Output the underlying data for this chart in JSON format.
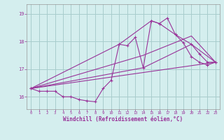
{
  "xlabel": "Windchill (Refroidissement éolien,°C)",
  "background_color": "#d4eeee",
  "grid_color": "#a8cccc",
  "line_color": "#993399",
  "x_ticks": [
    0,
    1,
    2,
    3,
    4,
    5,
    6,
    7,
    8,
    9,
    10,
    11,
    12,
    13,
    14,
    15,
    16,
    17,
    18,
    19,
    20,
    21,
    22,
    23
  ],
  "y_ticks": [
    16,
    17,
    18,
    19
  ],
  "ylim": [
    15.55,
    19.35
  ],
  "xlim": [
    -0.5,
    23.5
  ],
  "line1_x": [
    0,
    1,
    2,
    3,
    4,
    5,
    6,
    7,
    8,
    9,
    10,
    11,
    12,
    13,
    14,
    15,
    16,
    17,
    18,
    19,
    20,
    21,
    22,
    23
  ],
  "line1_y": [
    16.3,
    16.2,
    16.2,
    16.2,
    16.0,
    16.0,
    15.9,
    15.85,
    15.82,
    16.3,
    16.6,
    17.9,
    17.85,
    18.15,
    17.05,
    18.75,
    18.65,
    18.85,
    18.25,
    17.95,
    17.45,
    17.25,
    17.15,
    17.25
  ],
  "line2_x": [
    0,
    23
  ],
  "line2_y": [
    16.3,
    17.25
  ],
  "line3_x": [
    0,
    14,
    20,
    23
  ],
  "line3_y": [
    16.3,
    17.05,
    17.9,
    17.25
  ],
  "line4_x": [
    0,
    14,
    20,
    23
  ],
  "line4_y": [
    16.3,
    17.5,
    18.2,
    17.25
  ],
  "line5_x": [
    0,
    11,
    15,
    16,
    18,
    20,
    21,
    22,
    23
  ],
  "line5_y": [
    16.3,
    17.9,
    18.75,
    18.65,
    18.25,
    17.9,
    17.55,
    17.25,
    17.25
  ]
}
